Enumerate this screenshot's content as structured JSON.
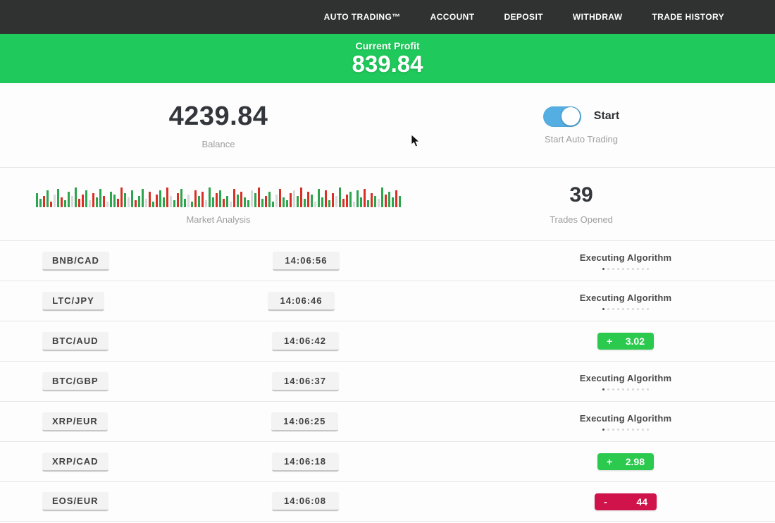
{
  "nav": {
    "items": [
      {
        "label": "AUTO TRADING™"
      },
      {
        "label": "ACCOUNT"
      },
      {
        "label": "DEPOSIT"
      },
      {
        "label": "WITHDRAW"
      },
      {
        "label": "TRADE HISTORY"
      }
    ]
  },
  "banner": {
    "label": "Current Profit",
    "value": "839.84",
    "background": "#1fc95b"
  },
  "account": {
    "balance": "4239.84",
    "balance_label": "Balance",
    "toggle_label": "Start",
    "toggle_caption": "Start Auto Trading",
    "toggle_on": true,
    "toggle_color": "#54aee1"
  },
  "market": {
    "chart_caption": "Market Analysis",
    "trades_opened": "39",
    "trades_opened_label": "Trades Opened"
  },
  "chart_data": {
    "type": "bar",
    "title": "Market Analysis",
    "xlabel": "",
    "ylabel": "",
    "legend": "decorative mini candlestick-style strip, green = up bar, red = down bar, x = faded bar",
    "heights": [
      20,
      12,
      16,
      24,
      8,
      18,
      26,
      14,
      10,
      22,
      16,
      28,
      12,
      18,
      24,
      10,
      20,
      14,
      26,
      16,
      8,
      22,
      18,
      12,
      28,
      20,
      14,
      24,
      10,
      16,
      26,
      12,
      22,
      8,
      18,
      24,
      14,
      28,
      16,
      10,
      20,
      26,
      12,
      18,
      8,
      24,
      16,
      22,
      10,
      28,
      14,
      20,
      24,
      12,
      16,
      8,
      26,
      18,
      22,
      14,
      10,
      24,
      20,
      28,
      12,
      16,
      22,
      8,
      18,
      26,
      14,
      10,
      20,
      24,
      16,
      28,
      12,
      22,
      18,
      8,
      26,
      14,
      24,
      10,
      20,
      16,
      28,
      12,
      18,
      22,
      8,
      24,
      14,
      26,
      10,
      20,
      16,
      12,
      28,
      18,
      22,
      14,
      24,
      16
    ],
    "colors": "ggrgrxgrggxgrrgxrggrxggrrgxgrggxrgrggrxgrggxgrgrxggrgrgxrgrggxgrgrggxrggrxgrgrgxggrgrxgrrgxggrgrgxgrggrg",
    "colors_legend": {
      "g": "#2da44e",
      "r": "#d93025",
      "x": "#d9d9d9"
    }
  },
  "trades": {
    "executing_dots": 10,
    "rows": [
      {
        "pair": "BNB/CAD",
        "time": "14:06:56",
        "status": {
          "type": "executing",
          "label": "Executing Algorithm"
        }
      },
      {
        "pair": "LTC/JPY",
        "time": "14:06:46",
        "status": {
          "type": "executing",
          "label": "Executing Algorithm"
        }
      },
      {
        "pair": "BTC/AUD",
        "time": "14:06:42",
        "status": {
          "type": "profit",
          "sign": "+",
          "value": "3.02"
        }
      },
      {
        "pair": "BTC/GBP",
        "time": "14:06:37",
        "status": {
          "type": "executing",
          "label": "Executing Algorithm"
        }
      },
      {
        "pair": "XRP/EUR",
        "time": "14:06:25",
        "status": {
          "type": "executing",
          "label": "Executing Algorithm"
        }
      },
      {
        "pair": "XRP/CAD",
        "time": "14:06:18",
        "status": {
          "type": "profit",
          "sign": "+",
          "value": "2.98"
        }
      },
      {
        "pair": "EOS/EUR",
        "time": "14:06:08",
        "status": {
          "type": "loss",
          "sign": "-",
          "value": "44"
        }
      }
    ]
  },
  "colors": {
    "nav_background": "#2f3231",
    "profit_green": "#1fc95b",
    "win_green": "#2bc94e",
    "loss_red": "#d1134b",
    "toggle_blue": "#54aee1"
  }
}
